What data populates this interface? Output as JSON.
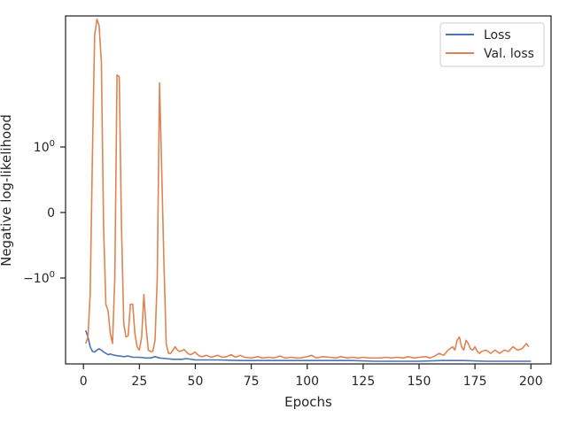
{
  "chart_data": {
    "type": "line",
    "xlabel": "Epochs",
    "ylabel": "Negative log-likelihood",
    "xlim": [
      -8,
      209
    ],
    "x_ticks": [
      0,
      25,
      50,
      75,
      100,
      125,
      150,
      175,
      200
    ],
    "y_scale": "symlog",
    "y_ticks": [
      {
        "value": 1,
        "label": "10",
        "exp": "0"
      },
      {
        "value": 0,
        "label": "0",
        "exp": ""
      },
      {
        "value": -1,
        "label": "−10",
        "exp": "0"
      }
    ],
    "grid": false,
    "legend_position": "top-right",
    "series": [
      {
        "name": "Loss",
        "color": "#4c72b0",
        "points": [
          [
            1,
            -1.8
          ],
          [
            2,
            -1.9
          ],
          [
            3,
            -2.05
          ],
          [
            4,
            -2.12
          ],
          [
            5,
            -2.13
          ],
          [
            6,
            -2.1
          ],
          [
            7,
            -2.08
          ],
          [
            8,
            -2.1
          ],
          [
            9,
            -2.13
          ],
          [
            10,
            -2.15
          ],
          [
            11,
            -2.17
          ],
          [
            12,
            -2.16
          ],
          [
            13,
            -2.17
          ],
          [
            14,
            -2.18
          ],
          [
            16,
            -2.19
          ],
          [
            18,
            -2.2
          ],
          [
            20,
            -2.19
          ],
          [
            22,
            -2.21
          ],
          [
            25,
            -2.21
          ],
          [
            28,
            -2.22
          ],
          [
            30,
            -2.22
          ],
          [
            32,
            -2.2
          ],
          [
            34,
            -2.22
          ],
          [
            37,
            -2.23
          ],
          [
            40,
            -2.24
          ],
          [
            44,
            -2.24
          ],
          [
            46,
            -2.23
          ],
          [
            50,
            -2.25
          ],
          [
            60,
            -2.25
          ],
          [
            70,
            -2.26
          ],
          [
            80,
            -2.26
          ],
          [
            90,
            -2.26
          ],
          [
            100,
            -2.26
          ],
          [
            110,
            -2.26
          ],
          [
            120,
            -2.26
          ],
          [
            130,
            -2.27
          ],
          [
            140,
            -2.27
          ],
          [
            150,
            -2.27
          ],
          [
            160,
            -2.26
          ],
          [
            170,
            -2.26
          ],
          [
            180,
            -2.27
          ],
          [
            190,
            -2.27
          ],
          [
            200,
            -2.27
          ]
        ]
      },
      {
        "name": "Val. loss",
        "color": "#dd8452",
        "points": [
          [
            1,
            -2.0
          ],
          [
            2,
            -1.9
          ],
          [
            3,
            -1.25
          ],
          [
            4,
            0.85
          ],
          [
            5,
            2.7
          ],
          [
            6,
            2.95
          ],
          [
            7,
            2.85
          ],
          [
            8,
            2.3
          ],
          [
            9,
            -0.2
          ],
          [
            10,
            -1.4
          ],
          [
            11,
            -1.5
          ],
          [
            12,
            -1.85
          ],
          [
            13,
            -2.0
          ],
          [
            14,
            -1.0
          ],
          [
            15,
            2.1
          ],
          [
            16,
            2.07
          ],
          [
            17,
            -0.2
          ],
          [
            18,
            -1.7
          ],
          [
            19,
            -1.9
          ],
          [
            20,
            -1.88
          ],
          [
            21,
            -1.4
          ],
          [
            22,
            -1.4
          ],
          [
            23,
            -1.85
          ],
          [
            24,
            -2.05
          ],
          [
            25,
            -2.1
          ],
          [
            26,
            -1.9
          ],
          [
            27,
            -1.25
          ],
          [
            28,
            -1.75
          ],
          [
            29,
            -2.1
          ],
          [
            30,
            -2.12
          ],
          [
            31,
            -2.12
          ],
          [
            32,
            -1.95
          ],
          [
            33,
            -1.0
          ],
          [
            34,
            1.98
          ],
          [
            35,
            0.6
          ],
          [
            36,
            -0.8
          ],
          [
            37,
            -2.0
          ],
          [
            38,
            -2.15
          ],
          [
            39,
            -2.15
          ],
          [
            40,
            -2.1
          ],
          [
            41,
            -2.05
          ],
          [
            42,
            -2.1
          ],
          [
            43,
            -2.12
          ],
          [
            44,
            -2.11
          ],
          [
            45,
            -2.09
          ],
          [
            46,
            -2.13
          ],
          [
            47,
            -2.16
          ],
          [
            48,
            -2.17
          ],
          [
            49,
            -2.15
          ],
          [
            50,
            -2.13
          ],
          [
            51,
            -2.17
          ],
          [
            52,
            -2.19
          ],
          [
            53,
            -2.2
          ],
          [
            55,
            -2.18
          ],
          [
            57,
            -2.21
          ],
          [
            60,
            -2.18
          ],
          [
            62,
            -2.21
          ],
          [
            64,
            -2.2
          ],
          [
            66,
            -2.17
          ],
          [
            68,
            -2.21
          ],
          [
            70,
            -2.18
          ],
          [
            72,
            -2.21
          ],
          [
            75,
            -2.22
          ],
          [
            78,
            -2.2
          ],
          [
            80,
            -2.22
          ],
          [
            83,
            -2.21
          ],
          [
            85,
            -2.22
          ],
          [
            88,
            -2.19
          ],
          [
            90,
            -2.22
          ],
          [
            93,
            -2.21
          ],
          [
            95,
            -2.22
          ],
          [
            97,
            -2.22
          ],
          [
            100,
            -2.2
          ],
          [
            102,
            -2.18
          ],
          [
            104,
            -2.22
          ],
          [
            107,
            -2.2
          ],
          [
            110,
            -2.21
          ],
          [
            113,
            -2.22
          ],
          [
            115,
            -2.2
          ],
          [
            118,
            -2.22
          ],
          [
            120,
            -2.21
          ],
          [
            123,
            -2.22
          ],
          [
            125,
            -2.21
          ],
          [
            128,
            -2.22
          ],
          [
            130,
            -2.22
          ],
          [
            133,
            -2.22
          ],
          [
            135,
            -2.21
          ],
          [
            138,
            -2.22
          ],
          [
            140,
            -2.21
          ],
          [
            143,
            -2.22
          ],
          [
            145,
            -2.2
          ],
          [
            148,
            -2.22
          ],
          [
            150,
            -2.21
          ],
          [
            153,
            -2.2
          ],
          [
            155,
            -2.22
          ],
          [
            157,
            -2.19
          ],
          [
            159,
            -2.15
          ],
          [
            161,
            -2.18
          ],
          [
            163,
            -2.1
          ],
          [
            165,
            -2.05
          ],
          [
            166,
            -2.1
          ],
          [
            167,
            -1.95
          ],
          [
            168,
            -1.9
          ],
          [
            169,
            -2.05
          ],
          [
            170,
            -2.1
          ],
          [
            171,
            -1.95
          ],
          [
            172,
            -2.0
          ],
          [
            173,
            -2.08
          ],
          [
            174,
            -2.1
          ],
          [
            175,
            -2.05
          ],
          [
            176,
            -2.12
          ],
          [
            177,
            -2.15
          ],
          [
            178,
            -2.12
          ],
          [
            180,
            -2.1
          ],
          [
            182,
            -2.15
          ],
          [
            184,
            -2.1
          ],
          [
            186,
            -2.15
          ],
          [
            188,
            -2.1
          ],
          [
            190,
            -2.12
          ],
          [
            192,
            -2.05
          ],
          [
            194,
            -2.1
          ],
          [
            196,
            -2.08
          ],
          [
            198,
            -2.0
          ],
          [
            199,
            -2.05
          ]
        ]
      }
    ]
  }
}
